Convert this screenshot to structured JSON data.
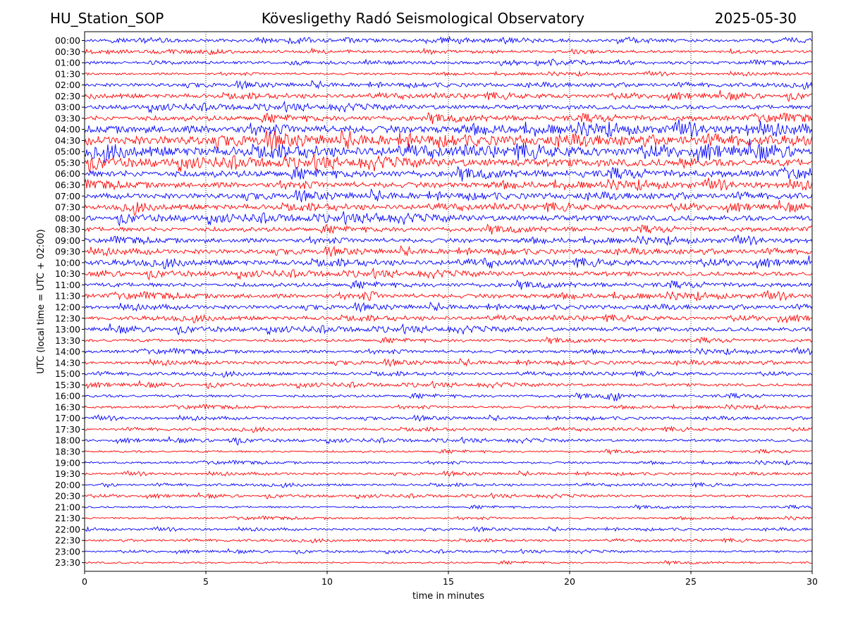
{
  "header": {
    "station": "HU_Station_SOP",
    "observatory": "Kövesligethy Radó Seismological Observatory",
    "date": "2025-05-30"
  },
  "chart_data": {
    "type": "line",
    "title": "Kövesligethy Radó Seismological Observatory",
    "xlabel": "time in minutes",
    "ylabel": "UTC (local time = UTC + 02:00)",
    "xlim": [
      0,
      30
    ],
    "x_ticks": [
      0,
      5,
      10,
      15,
      20,
      25,
      30
    ],
    "grid": "vertical-dotted",
    "trace_colors": [
      "#0000ff",
      "#ff0000"
    ],
    "rows": [
      "00:00",
      "00:30",
      "01:00",
      "01:30",
      "02:00",
      "02:30",
      "03:00",
      "03:30",
      "04:00",
      "04:30",
      "05:00",
      "05:30",
      "06:00",
      "06:30",
      "07:00",
      "07:30",
      "08:00",
      "08:30",
      "09:00",
      "09:30",
      "10:00",
      "10:30",
      "11:00",
      "11:30",
      "12:00",
      "12:30",
      "13:00",
      "13:30",
      "14:00",
      "14:30",
      "15:00",
      "15:30",
      "16:00",
      "16:30",
      "17:00",
      "17:30",
      "18:00",
      "18:30",
      "19:00",
      "19:30",
      "20:00",
      "20:30",
      "21:00",
      "21:30",
      "22:00",
      "22:30",
      "23:00",
      "23:30"
    ],
    "noise_level": [
      2.0,
      1.6,
      1.8,
      1.4,
      2.2,
      2.6,
      2.8,
      3.4,
      5.0,
      5.6,
      5.8,
      4.8,
      4.4,
      3.6,
      3.4,
      3.2,
      3.6,
      3.0,
      2.8,
      2.8,
      3.2,
      2.8,
      2.8,
      2.8,
      2.4,
      2.4,
      2.6,
      2.0,
      2.0,
      2.0,
      1.8,
      1.8,
      1.8,
      1.6,
      1.6,
      1.6,
      1.6,
      1.4,
      1.4,
      1.4,
      1.4,
      1.4,
      1.3,
      1.3,
      1.3,
      1.3,
      1.2,
      1.2
    ],
    "events": [
      {
        "row": "16:00",
        "minute": 21.8,
        "amplitude": 7
      },
      {
        "row": "05:30",
        "minute": 24.8,
        "amplitude": 6
      },
      {
        "row": "08:00",
        "minute": 12.0,
        "amplitude": 5
      },
      {
        "row": "11:30",
        "minute": 11.8,
        "amplitude": 4
      },
      {
        "row": "07:30",
        "minute": 2.0,
        "amplitude": 4
      },
      {
        "row": "18:00",
        "minute": 6.1,
        "amplitude": 4
      },
      {
        "row": "10:00",
        "minute": 16.7,
        "amplitude": 4
      },
      {
        "row": "04:00",
        "minute": 27.3,
        "amplitude": 5
      },
      {
        "row": "12:30",
        "minute": 28.6,
        "amplitude": 4
      },
      {
        "row": "20:00",
        "minute": 1.0,
        "amplitude": 3
      }
    ]
  }
}
